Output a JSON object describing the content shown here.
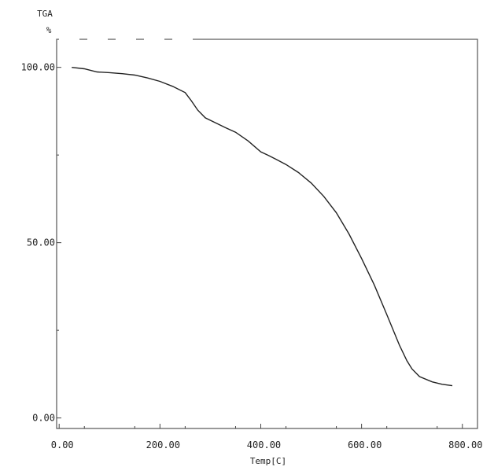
{
  "chart_data": {
    "type": "line",
    "ylabel_line1": "TGA",
    "ylabel_line2": "%",
    "xlabel": "Temp[C]",
    "xlim": [
      -5,
      830
    ],
    "ylim": [
      -3,
      108
    ],
    "grid": false,
    "x_ticks": [
      {
        "value": 0,
        "label": "0.00"
      },
      {
        "value": 200,
        "label": "200.00"
      },
      {
        "value": 400,
        "label": "400.00"
      },
      {
        "value": 600,
        "label": "600.00"
      },
      {
        "value": 800,
        "label": "800.00"
      }
    ],
    "y_ticks": [
      {
        "value": 0,
        "label": "0.00"
      },
      {
        "value": 50,
        "label": "50.00"
      },
      {
        "value": 100,
        "label": "100.00"
      }
    ],
    "series": [
      {
        "x": [
          25,
          50,
          75,
          100,
          125,
          150,
          175,
          200,
          225,
          250,
          262,
          275,
          290,
          310,
          330,
          350,
          375,
          400,
          415,
          430,
          450,
          475,
          500,
          525,
          550,
          575,
          600,
          625,
          650,
          675,
          690,
          700,
          715,
          740,
          760,
          780
        ],
        "y": [
          100.0,
          99.6,
          98.7,
          98.5,
          98.2,
          97.8,
          97.0,
          96.0,
          94.6,
          92.8,
          90.5,
          87.8,
          85.6,
          84.2,
          82.8,
          81.5,
          79.0,
          75.9,
          74.9,
          73.8,
          72.3,
          70.0,
          67.0,
          63.2,
          58.5,
          52.5,
          45.5,
          38.0,
          29.5,
          20.8,
          16.3,
          14.0,
          11.8,
          10.3,
          9.6,
          9.2
        ]
      }
    ]
  }
}
